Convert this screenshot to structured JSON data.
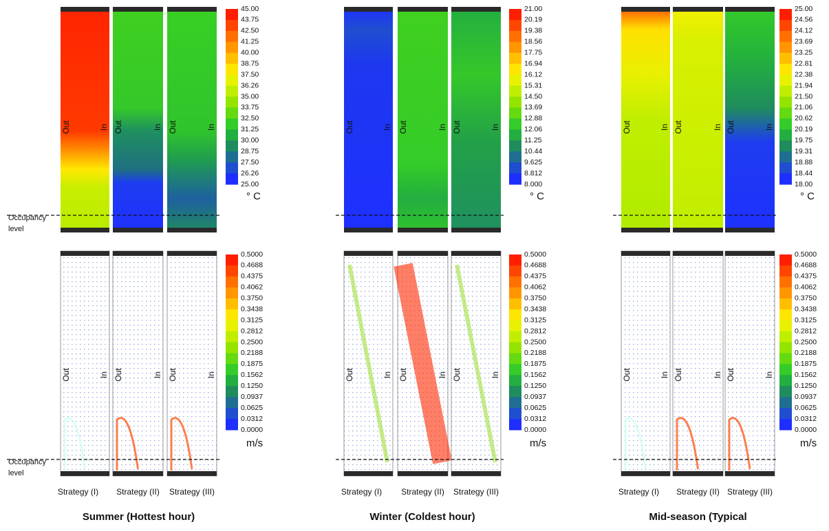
{
  "occupancy_label": [
    "Occupancy",
    "level"
  ],
  "side_labels": {
    "out": "Out",
    "in": "In"
  },
  "velocity_scale": {
    "ticks": [
      "0.5000",
      "0.4688",
      "0.4375",
      "0.4062",
      "0.3750",
      "0.3438",
      "0.3125",
      "0.2812",
      "0.2500",
      "0.2188",
      "0.1875",
      "0.1562",
      "0.1250",
      "0.0937",
      "0.0625",
      "0.0312",
      "0.0000"
    ],
    "unit": "m/s"
  },
  "groups": [
    {
      "title": "Summer (Hottest hour)",
      "temperature_scale": {
        "ticks": [
          "45.00",
          "43.75",
          "42.50",
          "41.25",
          "40.00",
          "38.75",
          "37.50",
          "36.26",
          "35.00",
          "33.75",
          "32.50",
          "31.25",
          "30.00",
          "28.75",
          "27.50",
          "26.26",
          "25.00"
        ],
        "unit": "° C"
      },
      "strategies": [
        "Strategy (I)",
        "Strategy (II)",
        "Strategy (III)"
      ]
    },
    {
      "title": "Winter (Coldest hour)",
      "temperature_scale": {
        "ticks": [
          "21.00",
          "20.19",
          "19.38",
          "18.56",
          "17.75",
          "16.94",
          "16.12",
          "15.31",
          "14.50",
          "13.69",
          "12.88",
          "12.06",
          "11.25",
          "10.44",
          "9.625",
          "8.812",
          "8.000"
        ],
        "unit": "° C"
      },
      "strategies": [
        "Strategy (I)",
        "Strategy (II)",
        "Strategy (III)"
      ]
    },
    {
      "title": "Mid-season (Typical",
      "temperature_scale": {
        "ticks": [
          "25.00",
          "24.56",
          "24.12",
          "23.69",
          "23.25",
          "22.81",
          "22.38",
          "21.94",
          "21.50",
          "21.06",
          "20.62",
          "20.19",
          "19.75",
          "19.31",
          "18.88",
          "18.44",
          "18.00"
        ],
        "unit": "° C"
      },
      "strategies": [
        "Strategy (I)",
        "Strategy (II)",
        "Strategy (III)"
      ]
    }
  ]
}
